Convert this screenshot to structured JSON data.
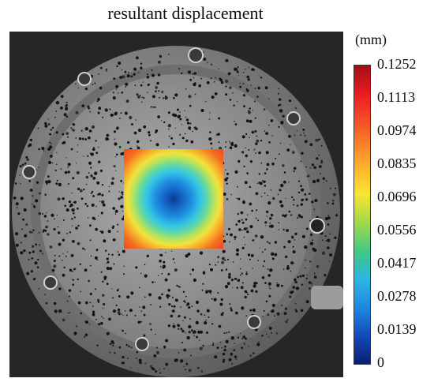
{
  "title": "resultant displacement",
  "colorbar": {
    "unit": "(mm)",
    "ticks": [
      "0.1252",
      "0.1113",
      "0.0974",
      "0.0835",
      "0.0696",
      "0.0556",
      "0.0417",
      "0.0278",
      "0.0139",
      "0"
    ]
  }
}
